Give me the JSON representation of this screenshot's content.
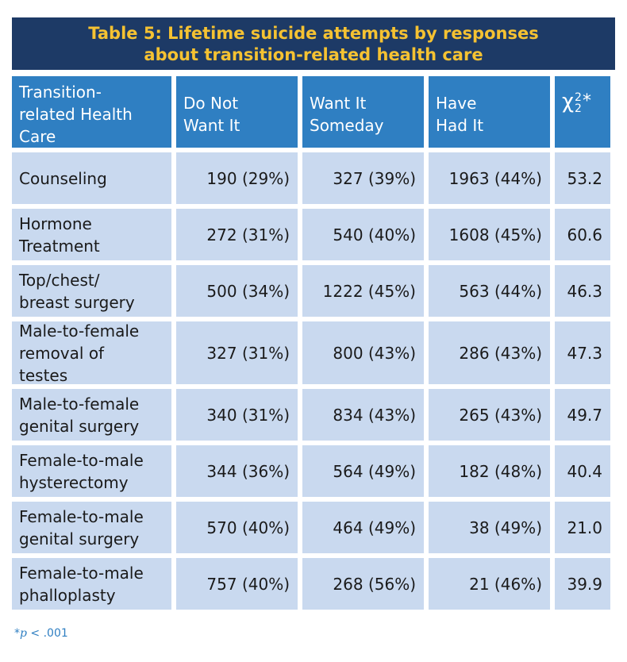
{
  "title": {
    "line1": "Table 5: Lifetime suicide attempts by responses",
    "line2": "about transition-related health care"
  },
  "headers": {
    "col1": [
      "Transition-",
      "related Health",
      "Care"
    ],
    "col2": [
      "Do Not",
      "Want It"
    ],
    "col3": [
      "Want It",
      "Someday"
    ],
    "col4": [
      "Have",
      "Had It"
    ],
    "col5": {
      "symbol": "χ",
      "sup": "2",
      "sub": "2",
      "star": "*"
    }
  },
  "rows": [
    {
      "label": [
        "Counseling"
      ],
      "do_not": "190 (29%)",
      "someday": "327 (39%)",
      "had": "1963 (44%)",
      "chi": "53.2"
    },
    {
      "label": [
        "Hormone",
        "Treatment"
      ],
      "do_not": "272 (31%)",
      "someday": "540 (40%)",
      "had": "1608 (45%)",
      "chi": "60.6"
    },
    {
      "label": [
        "Top/chest/",
        "breast surgery"
      ],
      "do_not": "500 (34%)",
      "someday": "1222 (45%)",
      "had": "563 (44%)",
      "chi": "46.3"
    },
    {
      "label": [
        "Male-to-female",
        "removal of",
        "testes"
      ],
      "do_not": "327 (31%)",
      "someday": "800 (43%)",
      "had": "286 (43%)",
      "chi": "47.3"
    },
    {
      "label": [
        "Male-to-female",
        "genital surgery"
      ],
      "do_not": "340 (31%)",
      "someday": "834 (43%)",
      "had": "265 (43%)",
      "chi": "49.7"
    },
    {
      "label": [
        "Female-to-male",
        "hysterectomy"
      ],
      "do_not": "344 (36%)",
      "someday": "564 (49%)",
      "had": "182 (48%)",
      "chi": "40.4"
    },
    {
      "label": [
        "Female-to-male",
        "genital surgery"
      ],
      "do_not": "570 (40%)",
      "someday": "464 (49%)",
      "had": "38 (49%)",
      "chi": "21.0"
    },
    {
      "label": [
        "Female-to-male",
        "phalloplasty"
      ],
      "do_not": "757 (40%)",
      "someday": "268 (56%)",
      "had": "21 (46%)",
      "chi": "39.9"
    }
  ],
  "footnote": {
    "star": "*",
    "p": "p",
    "rest": " < .001"
  }
}
